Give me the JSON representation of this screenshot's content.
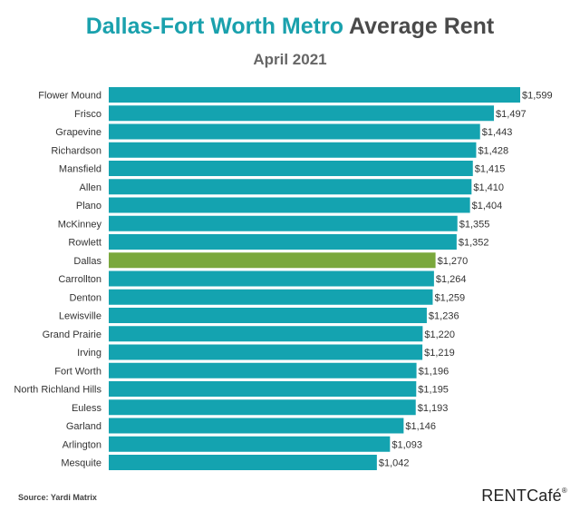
{
  "header": {
    "title_accent": "Dallas-Fort Worth Metro",
    "title_rest": "Average Rent",
    "subtitle": "April 2021"
  },
  "footer": {
    "source": "Source: Yardi Matrix",
    "brand": "RENTCafé",
    "brand_mark": "®"
  },
  "colors": {
    "bar": "#14a3b0",
    "highlight": "#7aa83c",
    "title_accent": "#1aa1ad",
    "text": "#333333"
  },
  "chart_data": {
    "type": "bar",
    "orientation": "horizontal",
    "title": "Dallas-Fort Worth Metro Average Rent",
    "subtitle": "April 2021",
    "xlabel": "",
    "ylabel": "",
    "highlight": "Dallas",
    "categories": [
      "Flower Mound",
      "Frisco",
      "Grapevine",
      "Richardson",
      "Mansfield",
      "Allen",
      "Plano",
      "McKinney",
      "Rowlett",
      "Dallas",
      "Carrollton",
      "Denton",
      "Lewisville",
      "Grand Prairie",
      "Irving",
      "Fort Worth",
      "North Richland Hills",
      "Euless",
      "Garland",
      "Arlington",
      "Mesquite"
    ],
    "values": [
      1599,
      1497,
      1443,
      1428,
      1415,
      1410,
      1404,
      1355,
      1352,
      1270,
      1264,
      1259,
      1236,
      1220,
      1219,
      1196,
      1195,
      1193,
      1146,
      1093,
      1042
    ],
    "data_labels": [
      "$1,599",
      "$1,497",
      "$1,443",
      "$1,428",
      "$1,415",
      "$1,410",
      "$1,404",
      "$1,355",
      "$1,352",
      "$1,270",
      "$1,264",
      "$1,259",
      "$1,236",
      "$1,220",
      "$1,219",
      "$1,196",
      "$1,195",
      "$1,193",
      "$1,146",
      "$1,093",
      "$1,042"
    ],
    "xlim": [
      0,
      1599
    ],
    "grid": false,
    "legend": "none"
  }
}
